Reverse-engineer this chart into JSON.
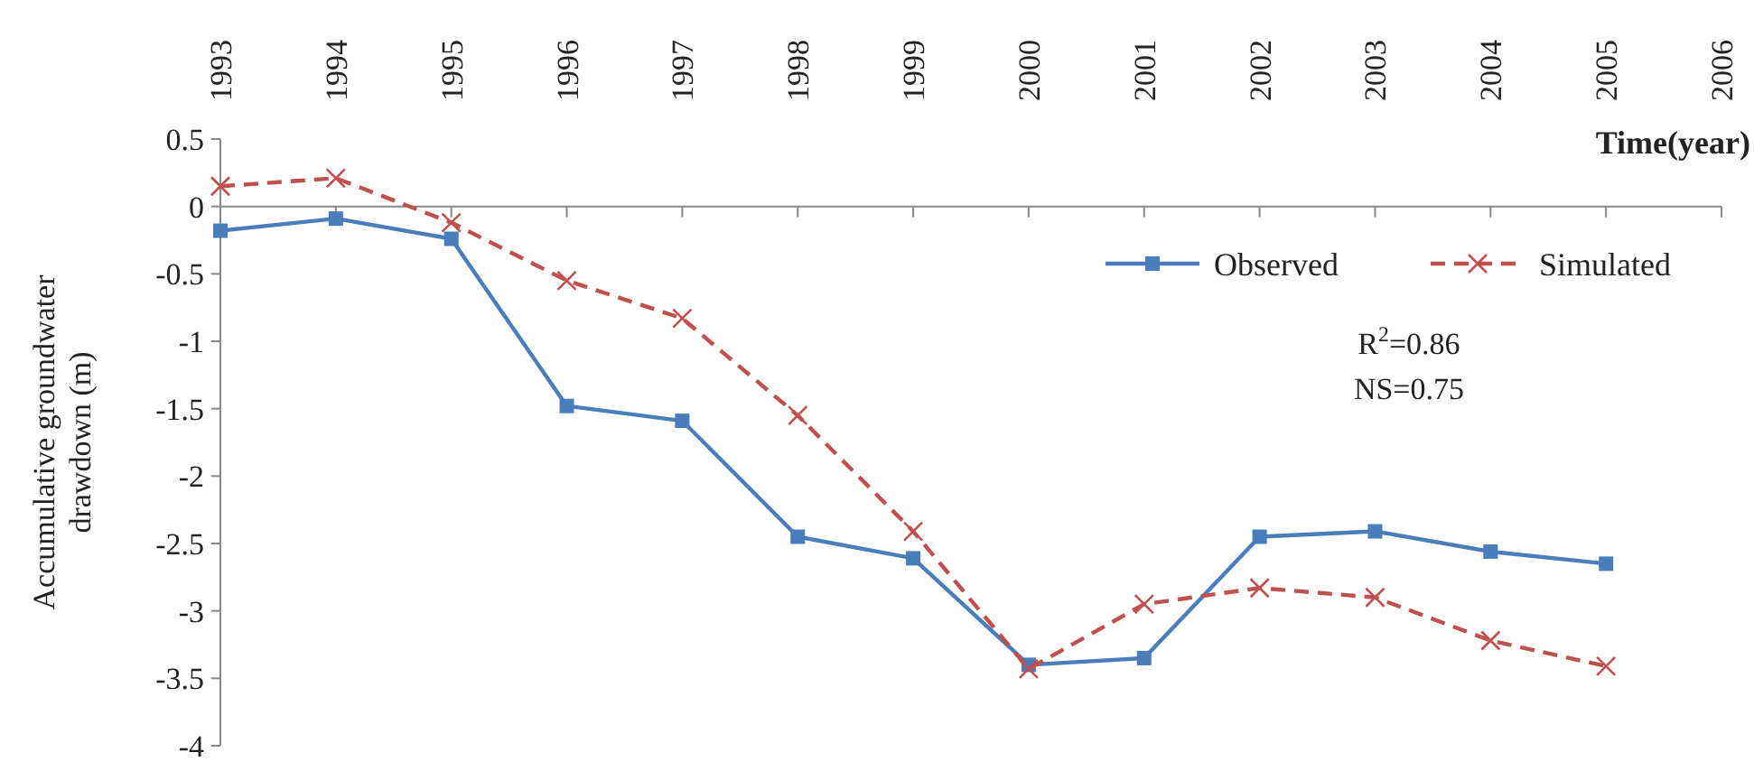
{
  "chart_data": {
    "type": "line",
    "xlabel": "Time(year)",
    "ylabel": "Accumulative groundwater drawdown (m)",
    "x": [
      1993,
      1994,
      1995,
      1996,
      1997,
      1998,
      1999,
      2000,
      2001,
      2002,
      2003,
      2004,
      2005
    ],
    "xlim": [
      1993,
      2006
    ],
    "xticks": [
      1993,
      1994,
      1995,
      1996,
      1997,
      1998,
      1999,
      2000,
      2001,
      2002,
      2003,
      2004,
      2005,
      2006
    ],
    "ylim": [
      -4,
      0.5
    ],
    "yticks": [
      0.5,
      0,
      -0.5,
      -1,
      -1.5,
      -2,
      -2.5,
      -3,
      -3.5,
      -4
    ],
    "series": [
      {
        "name": "Observed",
        "color": "#4a7ebb",
        "marker": "square",
        "line_style": "solid",
        "values": [
          -0.18,
          -0.09,
          -0.24,
          -1.48,
          -1.59,
          -2.45,
          -2.61,
          -3.4,
          -3.35,
          -2.45,
          -2.41,
          -2.56,
          -2.65
        ]
      },
      {
        "name": "Simulated",
        "color": "#c0504d",
        "marker": "cross",
        "line_style": "dashed",
        "values": [
          0.15,
          0.21,
          -0.12,
          -0.55,
          -0.83,
          -1.55,
          -2.41,
          -3.43,
          -2.95,
          -2.83,
          -2.9,
          -3.22,
          -3.41
        ]
      }
    ],
    "legend": "top right",
    "annotations": [
      "R$^{2}$=0.86",
      "NS=0.75"
    ]
  }
}
